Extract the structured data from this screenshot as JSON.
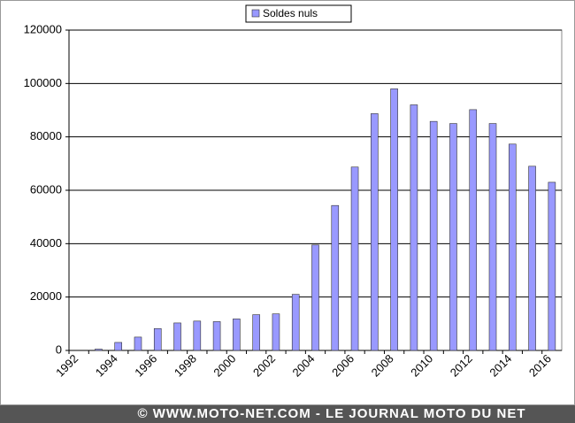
{
  "chart_data": {
    "type": "bar",
    "categories": [
      "1992",
      null,
      "1994",
      null,
      "1996",
      null,
      "1998",
      null,
      "2000",
      null,
      "2002",
      null,
      "2004",
      null,
      "2006",
      null,
      "2008",
      null,
      "2010",
      null,
      "2012",
      null,
      "2014",
      null,
      "2016"
    ],
    "series": [
      {
        "name": "Soldes nuls",
        "color": "#9999ff",
        "values": [
          0,
          500,
          3000,
          5000,
          8200,
          10300,
          11000,
          10800,
          11800,
          13400,
          13700,
          21000,
          39500,
          54300,
          68700,
          88700,
          98000,
          92000,
          85800,
          85000,
          90200,
          85000,
          77300,
          69000,
          63000
        ]
      }
    ],
    "ylim": [
      0,
      120000
    ],
    "yticks": [
      0,
      20000,
      40000,
      60000,
      80000,
      100000,
      120000
    ],
    "grid": true,
    "legend": "top",
    "footer": "© WWW.MOTO-NET.COM - LE JOURNAL MOTO DU NET"
  }
}
